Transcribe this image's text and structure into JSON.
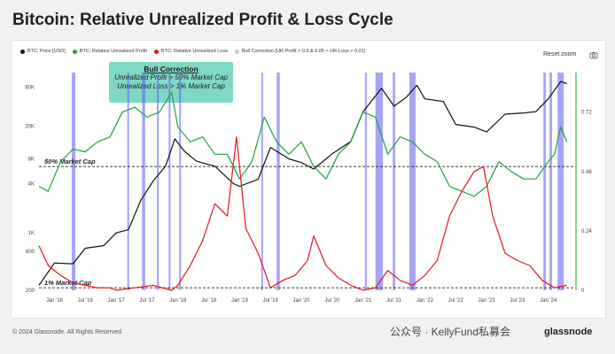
{
  "title": "Bitcoin: Relative Unrealized Profit & Loss Cycle",
  "legend": {
    "price": "BTC: Price [USD]",
    "profit": "BTC: Relative Unrealized Profit",
    "loss": "BTC: Relative Unrealized Loss",
    "bull": "Bull Correction [UR-Profit > 0.5 & 0.05 > UR-Loss > 0.01]"
  },
  "reset_zoom": "Reset zoom",
  "annotation": {
    "heading": "Bull Correction",
    "line1": "Unrealized Profit > 50% Market Cap",
    "line2": "Unrealized Loss > 1% Market Cap"
  },
  "ref_labels": {
    "fifty": "50% Market Cap",
    "one": "1% Market Cap"
  },
  "footer": "© 2024 Glassnode. All Rights Reserved.",
  "watermark_text": "公众号 · KellyFund私募会",
  "brand": "glassnode",
  "colors": {
    "price": "#111111",
    "profit": "#1fa33a",
    "loss": "#e8141c",
    "bull": "#5b5bf0",
    "annotation": "#7fd8c6"
  },
  "chart_data": {
    "type": "line",
    "x_ticks": [
      "Jan '16",
      "Jul '16",
      "Jan '17",
      "Jul '17",
      "Jan '18",
      "Jul '18",
      "Jan '19",
      "Jul '19",
      "Jan '20",
      "Jul '20",
      "Jan '21",
      "Jul '21",
      "Jan '22",
      "Jul '22",
      "Jan '23",
      "Jul '23",
      "Jan '24"
    ],
    "x_range": [
      2015.75,
      2024.42
    ],
    "y_left": {
      "scale": "log",
      "ticks": [
        "200",
        "600",
        "1K",
        "4K",
        "8K",
        "20K",
        "60K"
      ],
      "tick_values": [
        200,
        600,
        1000,
        4000,
        8000,
        20000,
        60000
      ],
      "range": [
        200,
        90000
      ]
    },
    "y_right": {
      "scale": "linear",
      "ticks": [
        "0",
        "0.24",
        "0.48",
        "0.72"
      ],
      "tick_values": [
        0,
        0.24,
        0.48,
        0.72
      ],
      "range": [
        0,
        0.88
      ]
    },
    "reference_lines": [
      {
        "label": "50% Market Cap",
        "value": 0.5
      },
      {
        "label": "1% Market Cap",
        "value": 0.01
      }
    ],
    "series": [
      {
        "name": "BTC: Price [USD]",
        "axis": "left",
        "x": [
          2015.75,
          2016.0,
          2016.3,
          2016.5,
          2016.8,
          2017.0,
          2017.2,
          2017.4,
          2017.6,
          2017.8,
          2017.95,
          2018.1,
          2018.3,
          2018.6,
          2018.9,
          2019.0,
          2019.3,
          2019.5,
          2019.8,
          2020.0,
          2020.2,
          2020.5,
          2020.8,
          2021.0,
          2021.3,
          2021.5,
          2021.7,
          2021.87,
          2022.0,
          2022.3,
          2022.5,
          2022.8,
          2023.0,
          2023.3,
          2023.6,
          2023.8,
          2024.0,
          2024.2,
          2024.3
        ],
        "values": [
          230,
          430,
          420,
          650,
          700,
          1000,
          1100,
          2500,
          4300,
          6500,
          14000,
          10000,
          7500,
          6500,
          4000,
          3700,
          4500,
          11000,
          8000,
          7200,
          6000,
          9200,
          13000,
          30000,
          58000,
          35000,
          45000,
          63000,
          43000,
          40000,
          21000,
          19500,
          17000,
          28000,
          29000,
          30000,
          43000,
          70000,
          66000
        ]
      },
      {
        "name": "BTC: Relative Unrealized Profit",
        "axis": "right",
        "x": [
          2015.75,
          2015.9,
          2016.1,
          2016.3,
          2016.5,
          2016.7,
          2016.9,
          2017.1,
          2017.3,
          2017.5,
          2017.7,
          2017.9,
          2018.0,
          2018.2,
          2018.4,
          2018.6,
          2018.8,
          2019.0,
          2019.2,
          2019.4,
          2019.6,
          2019.8,
          2020.0,
          2020.2,
          2020.4,
          2020.6,
          2020.8,
          2021.0,
          2021.2,
          2021.4,
          2021.6,
          2021.8,
          2022.0,
          2022.2,
          2022.4,
          2022.6,
          2022.8,
          2023.0,
          2023.2,
          2023.4,
          2023.6,
          2023.8,
          2024.0,
          2024.1,
          2024.2,
          2024.3
        ],
        "values": [
          0.42,
          0.4,
          0.52,
          0.57,
          0.56,
          0.6,
          0.62,
          0.72,
          0.74,
          0.7,
          0.72,
          0.8,
          0.66,
          0.6,
          0.62,
          0.55,
          0.55,
          0.45,
          0.52,
          0.7,
          0.6,
          0.55,
          0.6,
          0.5,
          0.45,
          0.55,
          0.6,
          0.72,
          0.7,
          0.55,
          0.62,
          0.6,
          0.55,
          0.52,
          0.42,
          0.4,
          0.38,
          0.42,
          0.52,
          0.48,
          0.45,
          0.45,
          0.52,
          0.55,
          0.66,
          0.6
        ]
      },
      {
        "name": "BTC: Relative Unrealized Loss",
        "axis": "right",
        "x": [
          2015.75,
          2015.9,
          2016.1,
          2016.3,
          2016.5,
          2016.7,
          2016.9,
          2017.0,
          2017.3,
          2017.6,
          2017.9,
          2018.0,
          2018.2,
          2018.4,
          2018.6,
          2018.8,
          2018.95,
          2019.1,
          2019.3,
          2019.5,
          2019.7,
          2019.9,
          2020.1,
          2020.2,
          2020.4,
          2020.6,
          2020.8,
          2021.0,
          2021.2,
          2021.4,
          2021.6,
          2021.8,
          2022.0,
          2022.2,
          2022.4,
          2022.6,
          2022.8,
          2022.95,
          2023.1,
          2023.3,
          2023.5,
          2023.7,
          2023.9,
          2024.1,
          2024.3
        ],
        "values": [
          0.18,
          0.1,
          0.06,
          0.03,
          0.02,
          0.01,
          0.01,
          0.0,
          0.01,
          0.02,
          0.0,
          0.02,
          0.1,
          0.2,
          0.35,
          0.3,
          0.62,
          0.25,
          0.15,
          0.01,
          0.04,
          0.06,
          0.12,
          0.22,
          0.1,
          0.05,
          0.02,
          0.0,
          0.01,
          0.08,
          0.04,
          0.02,
          0.06,
          0.12,
          0.3,
          0.4,
          0.48,
          0.5,
          0.3,
          0.15,
          0.12,
          0.1,
          0.04,
          0.01,
          0.02
        ]
      }
    ],
    "bull_correction_periods": [
      [
        2016.28,
        2016.34
      ],
      [
        2017.18,
        2017.21
      ],
      [
        2017.42,
        2017.47
      ],
      [
        2017.66,
        2017.69
      ],
      [
        2017.85,
        2017.88
      ],
      [
        2018.02,
        2018.05
      ],
      [
        2019.35,
        2019.38
      ],
      [
        2019.6,
        2019.65
      ],
      [
        2021.03,
        2021.06
      ],
      [
        2021.2,
        2021.32
      ],
      [
        2021.48,
        2021.52
      ],
      [
        2021.75,
        2021.85
      ],
      [
        2023.92,
        2023.96
      ],
      [
        2024.02,
        2024.06
      ],
      [
        2024.15,
        2024.25
      ]
    ]
  }
}
